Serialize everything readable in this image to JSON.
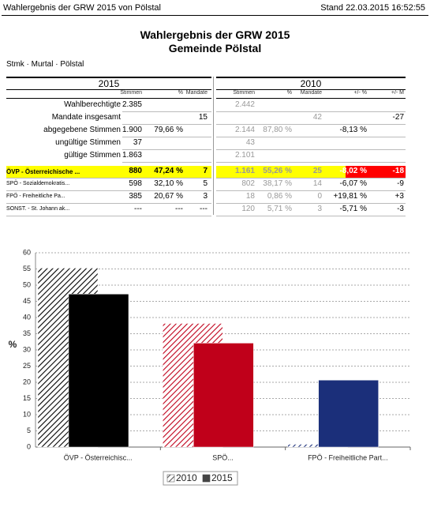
{
  "header": {
    "left": "Wahlergebnis der GRW 2015 von Pölstal",
    "right": "Stand 22.03.2015 16:52:55"
  },
  "title": [
    "Wahlergebnis der GRW 2015",
    "Gemeinde Pölstal"
  ],
  "breadcrumb": "Stmk · Murtal · Pölstal",
  "table": {
    "years": [
      "2015",
      "2010"
    ],
    "columns": [
      "Stimmen",
      "%",
      "Mandate",
      "Stimmen",
      "%",
      "Mandate",
      "+/- %",
      "+/- M"
    ],
    "summary_rows": [
      [
        "Wahlberechtigte",
        "2.385",
        null,
        null,
        "2.442",
        null,
        null,
        null,
        null
      ],
      [
        "Mandate insgesamt",
        null,
        null,
        "15",
        null,
        null,
        "42",
        null,
        "-27"
      ],
      [
        "abgegebene Stimmen",
        "1.900",
        "79,66 %",
        null,
        "2.144",
        "87,80 %",
        null,
        "-8,13 %",
        null
      ],
      [
        "ungültige Stimmen",
        "37",
        null,
        null,
        "43",
        null,
        null,
        null,
        null
      ],
      [
        "gültige Stimmen",
        "1.863",
        null,
        null,
        "2.101",
        null,
        null,
        null,
        null
      ]
    ],
    "party_rows": [
      [
        "ÖVP - Österreichische ...",
        "880",
        "47,24 %",
        "7",
        "1.161",
        "55,26 %",
        "25",
        "-8,02 %",
        "-18"
      ],
      [
        "SPÖ - Sozialdemokratis...",
        "598",
        "32,10 %",
        "5",
        "802",
        "38,17 %",
        "14",
        "-6,07 %",
        "-9"
      ],
      [
        "FPÖ - Freiheitliche Pa...",
        "385",
        "20,67 %",
        "3",
        "18",
        "0,86 %",
        "0",
        "+19,81 %",
        "+3"
      ],
      [
        "SONST. - St. Johann ak...",
        "---",
        "---",
        "---",
        "120",
        "5,71 %",
        "3",
        "-5,71 %",
        "-3"
      ]
    ]
  },
  "chart_data": {
    "type": "bar",
    "y_label": "%",
    "categories": [
      "ÖVP - Österreichisc...",
      "SPÖ...",
      "FPÖ - Freiheitliche Part..."
    ],
    "category_colors": [
      "#000000",
      "#c0001a",
      "#1b2f7a"
    ],
    "series": [
      {
        "name": "2010",
        "color": "#666666",
        "hatched": true,
        "values": [
          55.26,
          38.17,
          0.86
        ]
      },
      {
        "name": "2015",
        "color": "#444444",
        "hatched": false,
        "values": [
          47.24,
          32.1,
          20.67
        ]
      }
    ],
    "ylim": [
      0,
      60
    ],
    "yticks": [
      0,
      5,
      10,
      15,
      20,
      25,
      30,
      35,
      40,
      45,
      50,
      55,
      60
    ],
    "grid": true
  }
}
